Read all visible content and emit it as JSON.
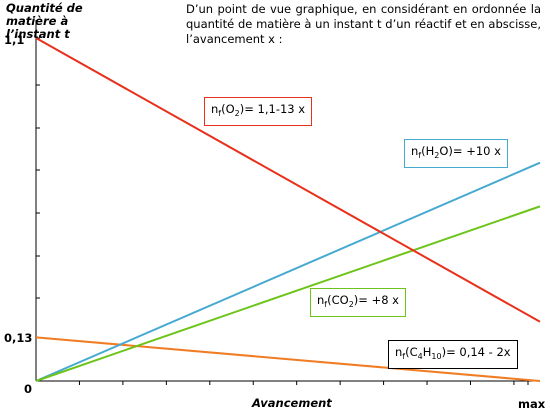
{
  "description": "D’un point de vue graphique, en considérant en ordonnée la quantité de matière à un instant t d’un réactif et en abscisse, l’avancement x :",
  "chart_data": {
    "type": "line",
    "ylabel": "Quantité de matière à l’instant t",
    "xlabel": "Avancement",
    "yticks": [
      "1,1",
      "0,13",
      "0"
    ],
    "xticks": [
      "max"
    ],
    "xlim": [
      0,
      0.07
    ],
    "ylim": [
      0,
      1.1
    ],
    "colors": {
      "O2": "#e8301c",
      "H2O": "#46a9d0",
      "CO2": "#6cc419",
      "C4H10": "#f07c24"
    },
    "series": [
      {
        "name": "O2",
        "x": [
          0,
          0.07
        ],
        "y": [
          1.1,
          0.19
        ]
      },
      {
        "name": "H2O",
        "x": [
          0,
          0.07
        ],
        "y": [
          0,
          0.7
        ]
      },
      {
        "name": "CO2",
        "x": [
          0,
          0.07
        ],
        "y": [
          0,
          0.56
        ]
      },
      {
        "name": "C4H10",
        "x": [
          0,
          0.07
        ],
        "y": [
          0.14,
          0
        ]
      }
    ],
    "annotations": {
      "O2": {
        "prefix": "n",
        "sub1": "f",
        "mid1": "(O",
        "sub2": "2",
        "suffix": ")= 1,1-13 x"
      },
      "H2O": {
        "prefix": "n",
        "sub1": "f",
        "mid1": "(H",
        "sub2": "2",
        "suffix": "O)= +10 x"
      },
      "CO2": {
        "prefix": "n",
        "sub1": "f",
        "mid1": "(CO",
        "sub2": "2",
        "suffix": ")= +8 x"
      },
      "C4H10": {
        "prefix": "n",
        "sub1": "f",
        "mid1": "(C",
        "sub2": "4",
        "mid2": "H",
        "sub3": "10",
        "suffix": ")= 0,14 - 2x"
      }
    }
  }
}
